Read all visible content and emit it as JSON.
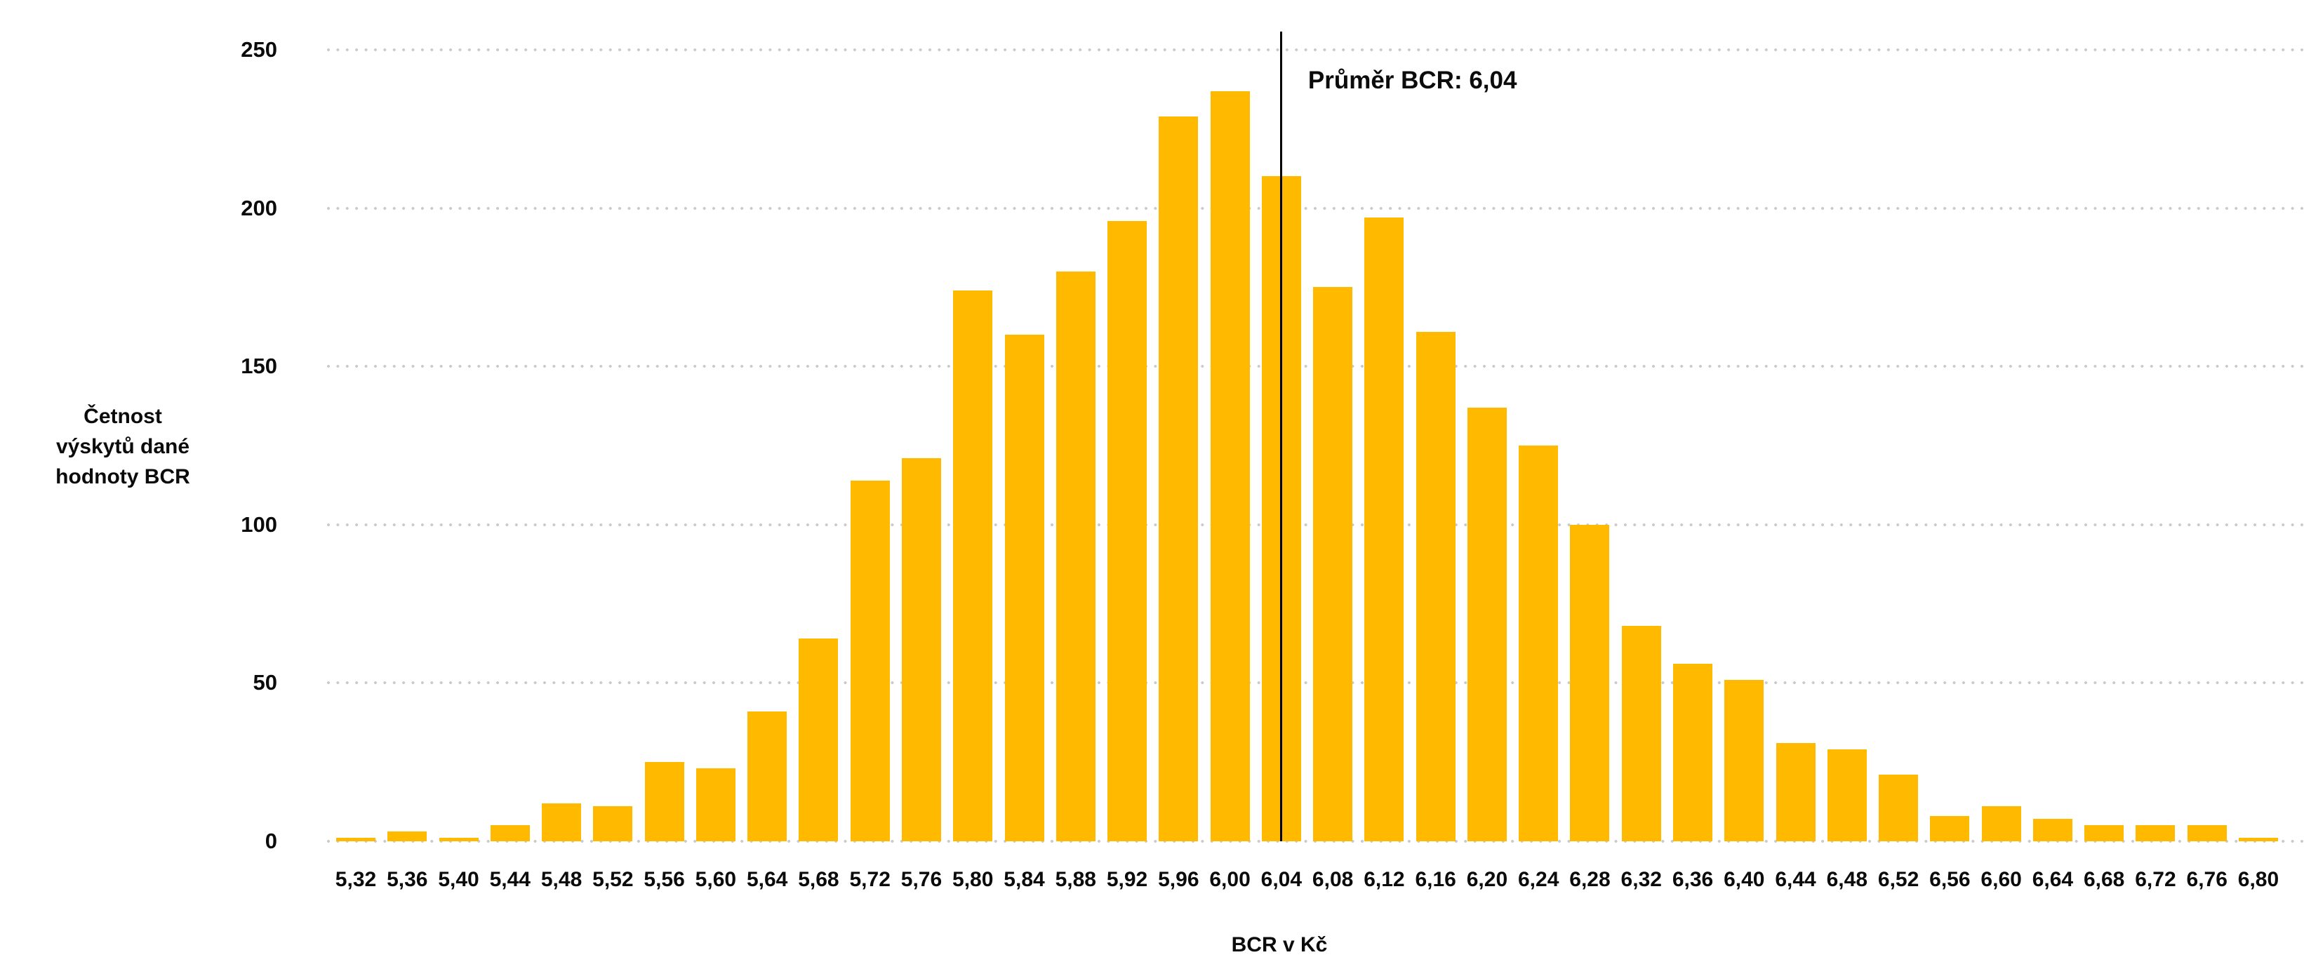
{
  "chart_data": {
    "type": "bar",
    "title": "",
    "categories": [
      "5,32",
      "5,36",
      "5,40",
      "5,44",
      "5,48",
      "5,52",
      "5,56",
      "5,60",
      "5,64",
      "5,68",
      "5,72",
      "5,76",
      "5,80",
      "5,84",
      "5,88",
      "5,92",
      "5,96",
      "6,00",
      "6,04",
      "6,08",
      "6,12",
      "6,16",
      "6,20",
      "6,24",
      "6,28",
      "6,32",
      "6,36",
      "6,40",
      "6,44",
      "6,48",
      "6,52",
      "6,56",
      "6,60",
      "6,64",
      "6,68",
      "6,72",
      "6,76",
      "6,80"
    ],
    "values": [
      1,
      3,
      1,
      5,
      12,
      11,
      25,
      23,
      41,
      64,
      114,
      121,
      174,
      160,
      180,
      196,
      229,
      237,
      210,
      175,
      197,
      161,
      137,
      125,
      100,
      68,
      56,
      51,
      31,
      29,
      21,
      8,
      11,
      7,
      5,
      5,
      5,
      1
    ],
    "xlabel": "BCR v Kč",
    "ylabel_lines": [
      "Četnost",
      "výskytů dané",
      "hodnoty BCR"
    ],
    "yticks": [
      0,
      50,
      100,
      150,
      200,
      250
    ],
    "ylim": [
      0,
      255
    ],
    "grid": "dotted-horizontal",
    "legend_position": "none",
    "annotation": {
      "text": "Průměr BCR: 6,04",
      "at_category": "6,04"
    },
    "colors": {
      "bar": "#FFBA00",
      "grid_dot": "#CBCBCB",
      "mean_line": "#000000",
      "text": "#0B0B0B",
      "background": "#FFFFFF"
    }
  }
}
